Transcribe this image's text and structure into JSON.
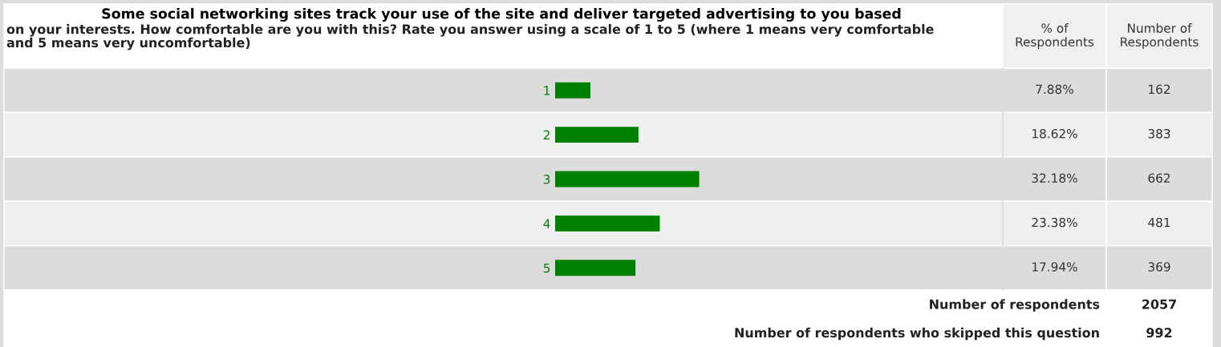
{
  "chart_data": {
    "type": "bar",
    "orientation": "horizontal",
    "title": "Some social networking sites track your use of the site and deliver targeted advertising to you based",
    "subtitle": "on your interests. How comfortable are you with this? Rate you answer using a scale of 1 to 5 (where 1 means very comfortable and 5 means very uncomfortable)",
    "categories": [
      "1",
      "2",
      "3",
      "4",
      "5"
    ],
    "values": [
      7.88,
      18.62,
      32.18,
      23.38,
      17.94
    ],
    "value_labels": [
      "7.88%",
      "18.62%",
      "32.18%",
      "23.38%",
      "17.94%"
    ],
    "color": "#008000",
    "xlim": [
      0,
      100
    ],
    "tick_labels": "y",
    "annotations": [
      "% of Respondents",
      "Number of Respondents",
      "162",
      "383",
      "662",
      "481",
      "369",
      "Number of respondents",
      "2057",
      "Number of respondents who skipped this question",
      "992"
    ]
  }
}
